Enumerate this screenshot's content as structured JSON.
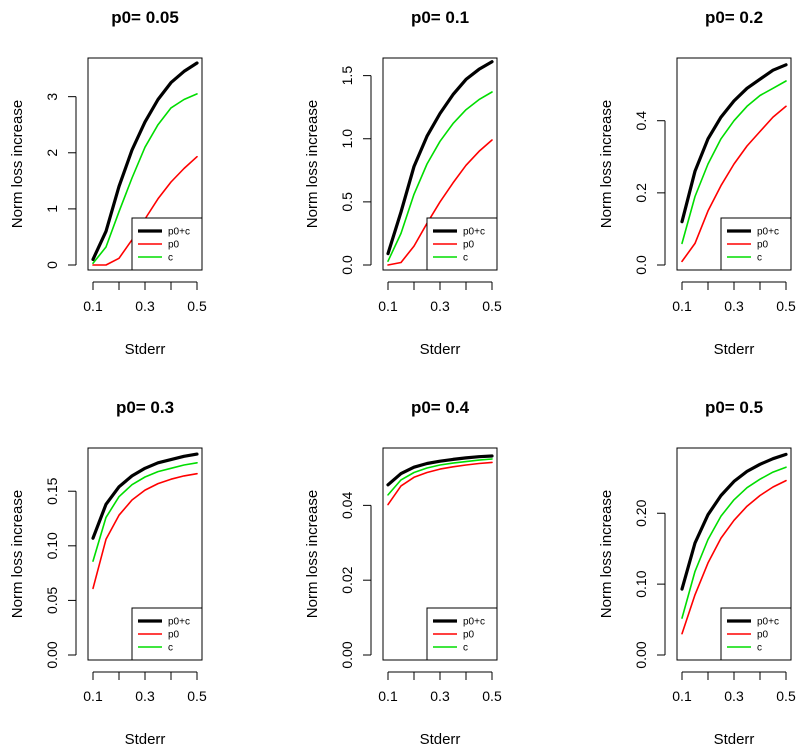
{
  "chart_data": [
    {
      "type": "line",
      "title": "p0= 0.05",
      "xlabel": "Stderr",
      "ylabel": "Norm loss increase",
      "xlim": [
        0.1,
        0.5
      ],
      "ylim": [
        0,
        3.6
      ],
      "xticks": [
        0.1,
        0.2,
        0.3,
        0.4,
        0.5
      ],
      "xtick_labels": [
        "0.1",
        "",
        "0.3",
        "",
        "0.5"
      ],
      "yticks": [
        0,
        1,
        2,
        3
      ],
      "ytick_labels": [
        "0",
        "1",
        "2",
        "3"
      ],
      "x": [
        0.1,
        0.15,
        0.2,
        0.25,
        0.3,
        0.35,
        0.4,
        0.45,
        0.5
      ],
      "series": [
        {
          "name": "p0+c",
          "color": "#000000",
          "width": 3.2,
          "values": [
            0.1,
            0.6,
            1.4,
            2.05,
            2.55,
            2.95,
            3.25,
            3.45,
            3.6
          ]
        },
        {
          "name": "p0",
          "color": "#ff0000",
          "width": 1.6,
          "values": [
            0.0,
            0.0,
            0.12,
            0.45,
            0.82,
            1.18,
            1.48,
            1.72,
            1.93
          ]
        },
        {
          "name": "c",
          "color": "#00dd00",
          "width": 1.6,
          "values": [
            0.03,
            0.32,
            0.95,
            1.55,
            2.1,
            2.5,
            2.8,
            2.95,
            3.05
          ]
        }
      ],
      "legend": {
        "location": "bottom-right",
        "entries": [
          "p0+c",
          "p0",
          "c"
        ]
      }
    },
    {
      "type": "line",
      "title": "p0= 0.1",
      "xlabel": "Stderr",
      "ylabel": "Norm loss increase",
      "xlim": [
        0.1,
        0.5
      ],
      "ylim": [
        0,
        1.6
      ],
      "xticks": [
        0.1,
        0.2,
        0.3,
        0.4,
        0.5
      ],
      "xtick_labels": [
        "0.1",
        "",
        "0.3",
        "",
        "0.5"
      ],
      "yticks": [
        0.0,
        0.5,
        1.0,
        1.5
      ],
      "ytick_labels": [
        "0.0",
        "0.5",
        "1.0",
        "1.5"
      ],
      "x": [
        0.1,
        0.15,
        0.2,
        0.25,
        0.3,
        0.35,
        0.4,
        0.45,
        0.5
      ],
      "series": [
        {
          "name": "p0+c",
          "color": "#000000",
          "width": 3.2,
          "values": [
            0.09,
            0.42,
            0.78,
            1.02,
            1.2,
            1.35,
            1.47,
            1.55,
            1.61
          ]
        },
        {
          "name": "p0",
          "color": "#ff0000",
          "width": 1.6,
          "values": [
            0.0,
            0.02,
            0.15,
            0.33,
            0.5,
            0.65,
            0.79,
            0.9,
            0.99
          ]
        },
        {
          "name": "c",
          "color": "#00dd00",
          "width": 1.6,
          "values": [
            0.03,
            0.25,
            0.56,
            0.8,
            0.98,
            1.12,
            1.23,
            1.31,
            1.37
          ]
        }
      ],
      "legend": {
        "location": "bottom-right",
        "entries": [
          "p0+c",
          "p0",
          "c"
        ]
      }
    },
    {
      "type": "line",
      "title": "p0= 0.2",
      "xlabel": "Stderr",
      "ylabel": "Norm loss increase",
      "xlim": [
        0.1,
        0.5
      ],
      "ylim": [
        0,
        0.56
      ],
      "xticks": [
        0.1,
        0.2,
        0.3,
        0.4,
        0.5
      ],
      "xtick_labels": [
        "0.1",
        "",
        "0.3",
        "",
        "0.5"
      ],
      "yticks": [
        0.0,
        0.2,
        0.4
      ],
      "ytick_labels": [
        "0.0",
        "0.2",
        "0.4"
      ],
      "x": [
        0.1,
        0.15,
        0.2,
        0.25,
        0.3,
        0.35,
        0.4,
        0.45,
        0.5
      ],
      "series": [
        {
          "name": "p0+c",
          "color": "#000000",
          "width": 3.2,
          "values": [
            0.12,
            0.26,
            0.35,
            0.41,
            0.455,
            0.49,
            0.515,
            0.54,
            0.555
          ]
        },
        {
          "name": "p0",
          "color": "#ff0000",
          "width": 1.6,
          "values": [
            0.01,
            0.06,
            0.15,
            0.22,
            0.28,
            0.33,
            0.37,
            0.41,
            0.44
          ]
        },
        {
          "name": "c",
          "color": "#00dd00",
          "width": 1.6,
          "values": [
            0.06,
            0.19,
            0.28,
            0.35,
            0.4,
            0.44,
            0.47,
            0.49,
            0.51
          ]
        }
      ],
      "legend": {
        "location": "bottom-right",
        "entries": [
          "p0+c",
          "p0",
          "c"
        ]
      }
    },
    {
      "type": "line",
      "title": "p0= 0.3",
      "xlabel": "Stderr",
      "ylabel": "Norm loss increase",
      "xlim": [
        0.1,
        0.5
      ],
      "ylim": [
        0,
        0.185
      ],
      "xticks": [
        0.1,
        0.2,
        0.3,
        0.4,
        0.5
      ],
      "xtick_labels": [
        "0.1",
        "",
        "0.3",
        "",
        "0.5"
      ],
      "yticks": [
        0.0,
        0.05,
        0.1,
        0.15
      ],
      "ytick_labels": [
        "0.00",
        "0.05",
        "0.10",
        "0.15"
      ],
      "x": [
        0.1,
        0.15,
        0.2,
        0.25,
        0.3,
        0.35,
        0.4,
        0.45,
        0.5
      ],
      "series": [
        {
          "name": "p0+c",
          "color": "#000000",
          "width": 3.2,
          "values": [
            0.107,
            0.138,
            0.154,
            0.164,
            0.171,
            0.176,
            0.179,
            0.182,
            0.184
          ]
        },
        {
          "name": "p0",
          "color": "#ff0000",
          "width": 1.6,
          "values": [
            0.061,
            0.106,
            0.128,
            0.142,
            0.151,
            0.157,
            0.161,
            0.164,
            0.166
          ]
        },
        {
          "name": "c",
          "color": "#00dd00",
          "width": 1.6,
          "values": [
            0.086,
            0.126,
            0.145,
            0.156,
            0.163,
            0.168,
            0.171,
            0.174,
            0.176
          ]
        }
      ],
      "legend": {
        "location": "bottom-right",
        "entries": [
          "p0+c",
          "p0",
          "c"
        ]
      }
    },
    {
      "type": "line",
      "title": "p0= 0.4",
      "xlabel": "Stderr",
      "ylabel": "Norm loss increase",
      "xlim": [
        0.1,
        0.5
      ],
      "ylim": [
        0,
        0.054
      ],
      "xticks": [
        0.1,
        0.2,
        0.3,
        0.4,
        0.5
      ],
      "xtick_labels": [
        "0.1",
        "",
        "0.3",
        "",
        "0.5"
      ],
      "yticks": [
        0.0,
        0.02,
        0.04
      ],
      "ytick_labels": [
        "0.00",
        "0.02",
        "0.04"
      ],
      "x": [
        0.1,
        0.15,
        0.2,
        0.25,
        0.3,
        0.35,
        0.4,
        0.45,
        0.5
      ],
      "series": [
        {
          "name": "p0+c",
          "color": "#000000",
          "width": 3.2,
          "values": [
            0.0455,
            0.0485,
            0.0502,
            0.0512,
            0.0518,
            0.0523,
            0.0527,
            0.053,
            0.0532
          ]
        },
        {
          "name": "p0",
          "color": "#ff0000",
          "width": 1.6,
          "values": [
            0.0402,
            0.0452,
            0.0475,
            0.0488,
            0.0497,
            0.0503,
            0.0508,
            0.0512,
            0.0515
          ]
        },
        {
          "name": "c",
          "color": "#00dd00",
          "width": 1.6,
          "values": [
            0.0428,
            0.0468,
            0.0488,
            0.05,
            0.0508,
            0.0513,
            0.0517,
            0.0521,
            0.0524
          ]
        }
      ],
      "legend": {
        "location": "bottom-right",
        "entries": [
          "p0+c",
          "p0",
          "c"
        ]
      }
    },
    {
      "type": "line",
      "title": "p0= 0.5",
      "xlabel": "Stderr",
      "ylabel": "Norm loss increase",
      "xlim": [
        0.1,
        0.5
      ],
      "ylim": [
        0,
        0.285
      ],
      "xticks": [
        0.1,
        0.2,
        0.3,
        0.4,
        0.5
      ],
      "xtick_labels": [
        "0.1",
        "",
        "0.3",
        "",
        "0.5"
      ],
      "yticks": [
        0.0,
        0.1,
        0.2
      ],
      "ytick_labels": [
        "0.00",
        "0.10",
        "0.20"
      ],
      "x": [
        0.1,
        0.15,
        0.2,
        0.25,
        0.3,
        0.35,
        0.4,
        0.45,
        0.5
      ],
      "series": [
        {
          "name": "p0+c",
          "color": "#000000",
          "width": 3.2,
          "values": [
            0.093,
            0.158,
            0.198,
            0.225,
            0.245,
            0.259,
            0.269,
            0.277,
            0.283
          ]
        },
        {
          "name": "p0",
          "color": "#ff0000",
          "width": 1.6,
          "values": [
            0.03,
            0.085,
            0.13,
            0.165,
            0.19,
            0.21,
            0.225,
            0.237,
            0.246
          ]
        },
        {
          "name": "c",
          "color": "#00dd00",
          "width": 1.6,
          "values": [
            0.052,
            0.118,
            0.163,
            0.196,
            0.219,
            0.236,
            0.248,
            0.258,
            0.265
          ]
        }
      ],
      "legend": {
        "location": "bottom-right",
        "entries": [
          "p0+c",
          "p0",
          "c"
        ]
      }
    }
  ]
}
